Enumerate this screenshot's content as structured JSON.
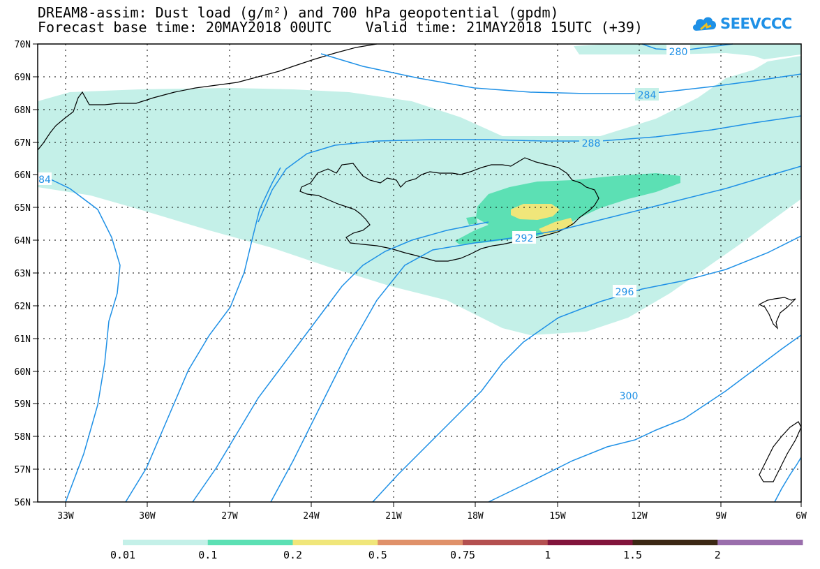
{
  "title": {
    "line1": "DREAM8-assim: Dust load (g/m²) and 700 hPa geopotential (gpdm)",
    "line2": "Forecast base time: 20MAY2018 00UTC    Valid time: 21MAY2018 15UTC (+39)"
  },
  "logo": {
    "text": "SEEVCCC",
    "icon": "cloud-icon"
  },
  "axes": {
    "lat_ticks": [
      "70N",
      "69N",
      "68N",
      "67N",
      "66N",
      "65N",
      "64N",
      "63N",
      "62N",
      "61N",
      "60N",
      "59N",
      "58N",
      "57N",
      "56N"
    ],
    "lon_ticks": [
      "33W",
      "30W",
      "27W",
      "24W",
      "21W",
      "18W",
      "15W",
      "12W",
      "9W",
      "6W"
    ]
  },
  "contours": {
    "color": "#1e90e6",
    "labels": [
      "280",
      "284",
      "288",
      "292",
      "296",
      "300",
      "84"
    ]
  },
  "legend": {
    "labels": [
      "0.01",
      "0.1",
      "0.2",
      "0.5",
      "0.75",
      "1",
      "1.5",
      "2"
    ],
    "colors": [
      "#c4f0e8",
      "#5ce0b4",
      "#f0e67a",
      "#e0916a",
      "#b45050",
      "#82143c",
      "#3c2814",
      "#9a6eac"
    ]
  }
}
